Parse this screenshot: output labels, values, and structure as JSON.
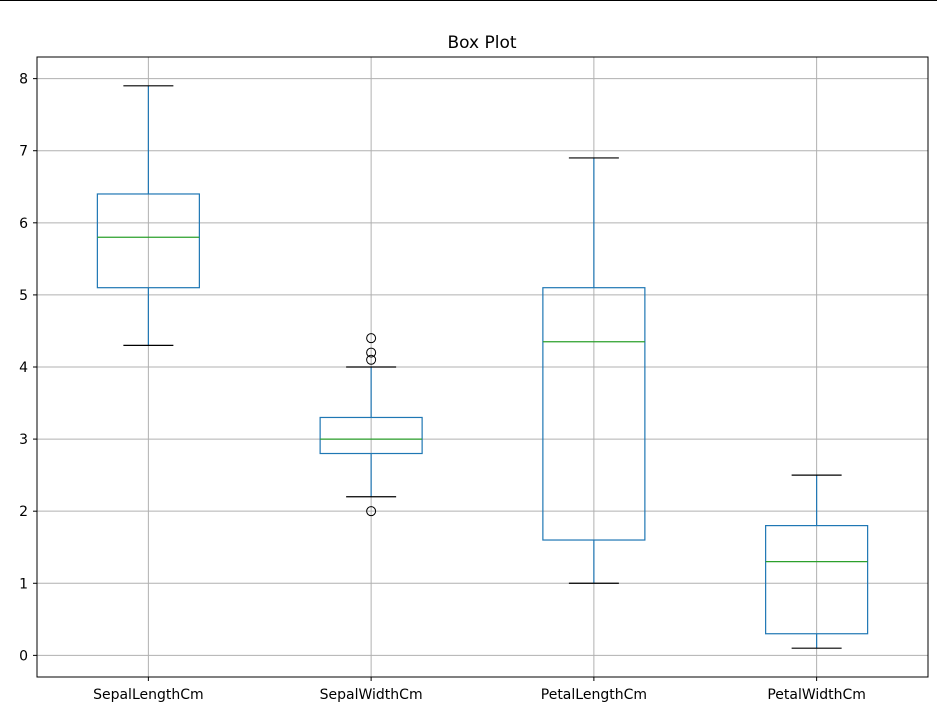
{
  "chart_data": {
    "type": "box",
    "title": "Box Plot",
    "xlabel": "",
    "ylabel": "",
    "ylim": [
      -0.3,
      8.3
    ],
    "y_ticks": [
      0,
      1,
      2,
      3,
      4,
      5,
      6,
      7,
      8
    ],
    "grid": true,
    "categories": [
      "SepalLengthCm",
      "SepalWidthCm",
      "PetalLengthCm",
      "PetalWidthCm"
    ],
    "boxes": [
      {
        "whisker_low": 4.3,
        "q1": 5.1,
        "median": 5.8,
        "q3": 6.4,
        "whisker_high": 7.9,
        "outliers": []
      },
      {
        "whisker_low": 2.2,
        "q1": 2.8,
        "median": 3.0,
        "q3": 3.3,
        "whisker_high": 4.0,
        "outliers": [
          4.1,
          4.2,
          4.4,
          2.0
        ]
      },
      {
        "whisker_low": 1.0,
        "q1": 1.6,
        "median": 4.35,
        "q3": 5.1,
        "whisker_high": 6.9,
        "outliers": []
      },
      {
        "whisker_low": 0.1,
        "q1": 0.3,
        "median": 1.3,
        "q3": 1.8,
        "whisker_high": 2.5,
        "outliers": []
      }
    ],
    "colors": {
      "box": "#1f77b4",
      "median": "#2ca02c",
      "cap": "#000000",
      "grid": "#b0b0b0",
      "axis": "#000000"
    }
  }
}
